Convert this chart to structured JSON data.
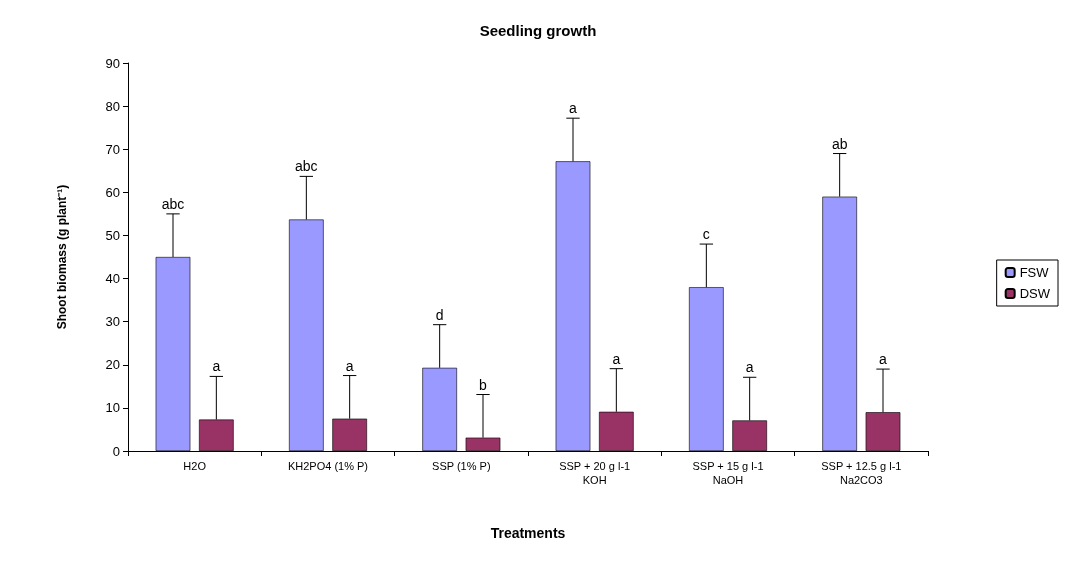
{
  "chart_data": {
    "type": "bar",
    "title": "Seedling growth",
    "xlabel": "Treatments",
    "ylabel": "Shoot biomass (g plant⁻¹)",
    "categories": [
      "H2O",
      "KH2PO4 (1% P)",
      "SSP (1% P)",
      "SSP + 20 g l-1\nKOH",
      "SSP + 15 g l-1\nNaOH",
      "SSP + 12.5 g l-1\nNa2CO3"
    ],
    "series": [
      {
        "name": "FSW",
        "color": "#9999ff",
        "values": [
          45,
          53.7,
          19.3,
          67.2,
          38,
          59
        ],
        "errors": [
          [
            45,
            55
          ],
          [
            53.7,
            63.7
          ],
          [
            19.3,
            29.3
          ],
          [
            67.2,
            77.2
          ],
          [
            38,
            48
          ],
          [
            59,
            69
          ]
        ]
      },
      {
        "name": "DSW",
        "color": "#993366",
        "values": [
          7.3,
          7.5,
          3.1,
          9.1,
          7.1,
          9
        ],
        "errors": [
          [
            7.3,
            17.3
          ],
          [
            7.5,
            17.5
          ],
          [
            3.1,
            13.1
          ],
          [
            9.1,
            19.1
          ],
          [
            7.1,
            17.1
          ],
          [
            9,
            19
          ]
        ]
      }
    ],
    "ylim": [
      0,
      90
    ],
    "yticks": [
      0,
      10,
      20,
      30,
      40,
      50,
      60,
      70,
      80,
      90
    ],
    "grid": false,
    "legend": "right",
    "annotations": [
      "abc",
      "a",
      "abc",
      "a",
      "d",
      "b",
      "a",
      "a",
      "c",
      "a",
      "ab",
      "a"
    ]
  }
}
